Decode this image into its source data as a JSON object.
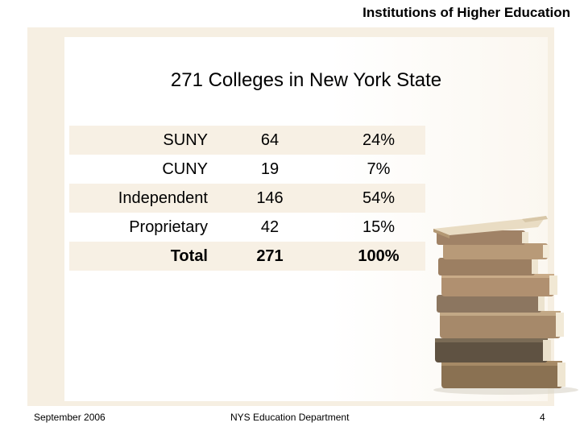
{
  "header": {
    "title": "Institutions of Higher Education"
  },
  "slide": {
    "title": "271 Colleges in New York State"
  },
  "table": {
    "rows": [
      {
        "name": "SUNY",
        "count": "64",
        "percent": "24%"
      },
      {
        "name": "CUNY",
        "count": "19",
        "percent": "7%"
      },
      {
        "name": "Independent",
        "count": "146",
        "percent": "54%"
      },
      {
        "name": "Proprietary",
        "count": "42",
        "percent": "15%"
      },
      {
        "name": "Total",
        "count": "271",
        "percent": "100%"
      }
    ]
  },
  "footer": {
    "date": "September 2006",
    "department": "NYS Education Department",
    "page": "4"
  },
  "colors": {
    "frame_background": "#f6efe2",
    "row_shading": "#f7f0e4"
  },
  "icons": {
    "decoration": "book-stack-icon"
  }
}
